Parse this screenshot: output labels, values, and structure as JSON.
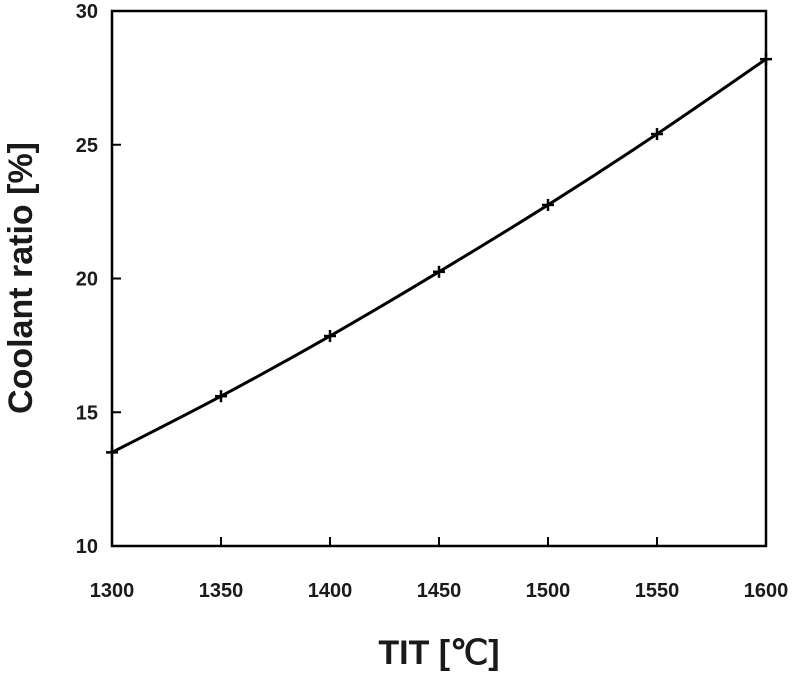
{
  "chart_data": {
    "type": "line",
    "xlabel": "TIT [℃]",
    "ylabel": "Coolant ratio [%]",
    "xlim": [
      1300,
      1600
    ],
    "ylim": [
      10,
      30
    ],
    "xticks": [
      1300,
      1350,
      1400,
      1450,
      1500,
      1550,
      1600
    ],
    "yticks": [
      10,
      15,
      20,
      25,
      30
    ],
    "x_tick_labels": [
      "1300",
      "1350",
      "1400",
      "1450",
      "1500",
      "1550",
      "1600"
    ],
    "y_tick_labels": [
      "10",
      "15",
      "20",
      "25",
      "30"
    ],
    "grid": false,
    "legend": "none",
    "marker": "plus",
    "line_color": "#000000",
    "series": [
      {
        "x": [
          1300,
          1350,
          1400,
          1450,
          1500,
          1550,
          1600
        ],
        "values": [
          13.5,
          15.6,
          17.85,
          20.25,
          22.75,
          25.4,
          28.2
        ]
      }
    ]
  }
}
